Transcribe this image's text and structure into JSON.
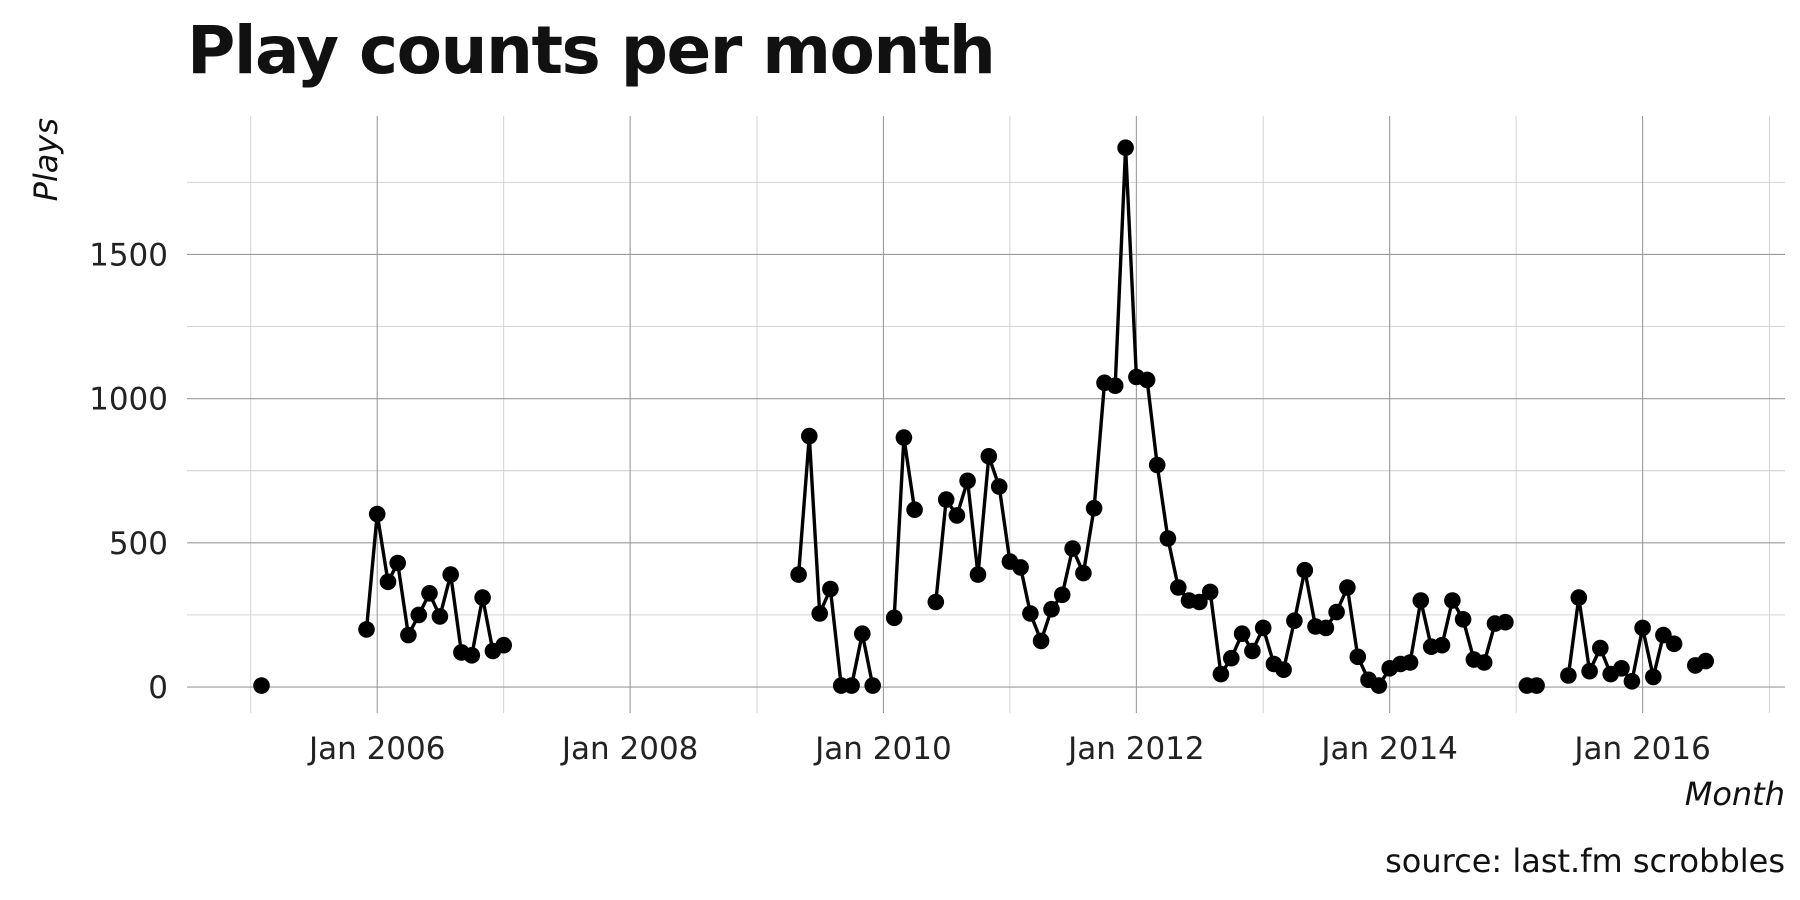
{
  "chart_data": {
    "type": "line",
    "title": "Play counts per month",
    "xlabel": "Month",
    "ylabel": "Plays",
    "caption": "source: last.fm scrobbles",
    "x_ticks": [
      "Jan 2006",
      "Jan 2008",
      "Jan 2010",
      "Jan 2012",
      "Jan 2014",
      "Jan 2016"
    ],
    "y_ticks": [
      0,
      500,
      1000,
      1500
    ],
    "xlim": [
      "2004-07-01",
      "2017-02-15"
    ],
    "ylim": [
      -90,
      1980
    ],
    "grid": true,
    "series": [
      {
        "segments": [
          [
            [
              "2005-02-01",
              5
            ]
          ],
          [
            [
              "2005-12-01",
              200
            ],
            [
              "2006-01-01",
              600
            ],
            [
              "2006-02-01",
              365
            ],
            [
              "2006-03-01",
              430
            ],
            [
              "2006-04-01",
              180
            ],
            [
              "2006-05-01",
              250
            ],
            [
              "2006-06-01",
              325
            ],
            [
              "2006-07-01",
              245
            ],
            [
              "2006-08-01",
              390
            ],
            [
              "2006-09-01",
              120
            ],
            [
              "2006-10-01",
              110
            ],
            [
              "2006-11-01",
              310
            ],
            [
              "2006-12-01",
              125
            ],
            [
              "2007-01-01",
              145
            ]
          ],
          [
            [
              "2009-05-01",
              390
            ],
            [
              "2009-06-01",
              870
            ],
            [
              "2009-07-01",
              255
            ],
            [
              "2009-08-01",
              340
            ],
            [
              "2009-09-01",
              5
            ],
            [
              "2009-10-01",
              5
            ],
            [
              "2009-11-01",
              185
            ],
            [
              "2009-12-01",
              5
            ]
          ],
          [
            [
              "2010-02-01",
              240
            ],
            [
              "2010-03-01",
              865
            ],
            [
              "2010-04-01",
              615
            ]
          ],
          [
            [
              "2010-06-01",
              295
            ],
            [
              "2010-07-01",
              650
            ],
            [
              "2010-08-01",
              595
            ],
            [
              "2010-09-01",
              715
            ],
            [
              "2010-10-01",
              390
            ],
            [
              "2010-11-01",
              800
            ],
            [
              "2010-12-01",
              695
            ],
            [
              "2011-01-01",
              435
            ],
            [
              "2011-02-01",
              415
            ],
            [
              "2011-03-01",
              255
            ],
            [
              "2011-04-01",
              160
            ],
            [
              "2011-05-01",
              270
            ],
            [
              "2011-06-01",
              320
            ],
            [
              "2011-07-01",
              480
            ],
            [
              "2011-08-01",
              395
            ],
            [
              "2011-09-01",
              620
            ],
            [
              "2011-10-01",
              1055
            ],
            [
              "2011-11-01",
              1045
            ],
            [
              "2011-12-01",
              1870
            ],
            [
              "2012-01-01",
              1075
            ],
            [
              "2012-02-01",
              1065
            ],
            [
              "2012-03-01",
              770
            ],
            [
              "2012-04-01",
              515
            ],
            [
              "2012-05-01",
              345
            ],
            [
              "2012-06-01",
              300
            ],
            [
              "2012-07-01",
              295
            ],
            [
              "2012-08-01",
              330
            ],
            [
              "2012-09-01",
              45
            ],
            [
              "2012-10-01",
              100
            ],
            [
              "2012-11-01",
              185
            ],
            [
              "2012-12-01",
              125
            ],
            [
              "2013-01-01",
              205
            ],
            [
              "2013-02-01",
              80
            ],
            [
              "2013-03-01",
              60
            ],
            [
              "2013-04-01",
              230
            ],
            [
              "2013-05-01",
              405
            ],
            [
              "2013-06-01",
              210
            ],
            [
              "2013-07-01",
              205
            ],
            [
              "2013-08-01",
              260
            ],
            [
              "2013-09-01",
              345
            ],
            [
              "2013-10-01",
              105
            ],
            [
              "2013-11-01",
              25
            ],
            [
              "2013-12-01",
              5
            ],
            [
              "2014-01-01",
              65
            ],
            [
              "2014-02-01",
              80
            ],
            [
              "2014-03-01",
              85
            ],
            [
              "2014-04-01",
              300
            ],
            [
              "2014-05-01",
              140
            ],
            [
              "2014-06-01",
              145
            ],
            [
              "2014-07-01",
              300
            ],
            [
              "2014-08-01",
              235
            ],
            [
              "2014-09-01",
              95
            ],
            [
              "2014-10-01",
              85
            ],
            [
              "2014-11-01",
              220
            ],
            [
              "2014-12-01",
              225
            ]
          ],
          [
            [
              "2015-02-01",
              5
            ],
            [
              "2015-03-01",
              5
            ]
          ],
          [
            [
              "2015-06-01",
              40
            ],
            [
              "2015-07-01",
              310
            ],
            [
              "2015-08-01",
              55
            ],
            [
              "2015-09-01",
              135
            ],
            [
              "2015-10-01",
              45
            ],
            [
              "2015-11-01",
              65
            ],
            [
              "2015-12-01",
              20
            ],
            [
              "2016-01-01",
              205
            ],
            [
              "2016-02-01",
              35
            ],
            [
              "2016-03-01",
              180
            ],
            [
              "2016-04-01",
              150
            ]
          ],
          [
            [
              "2016-06-01",
              75
            ],
            [
              "2016-07-01",
              90
            ]
          ]
        ]
      }
    ]
  }
}
